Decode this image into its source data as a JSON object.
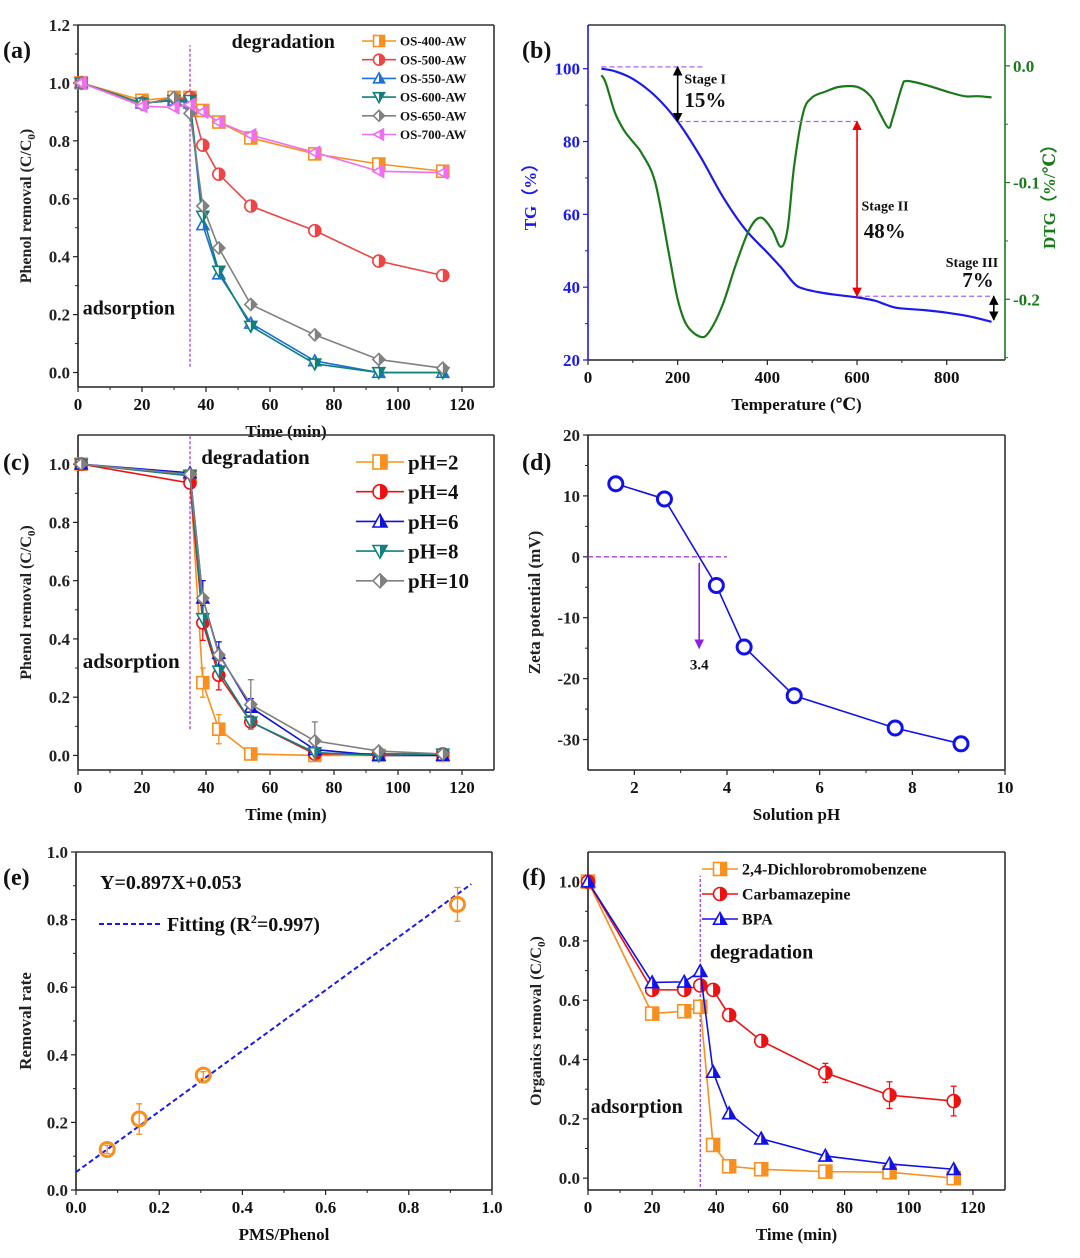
{
  "chart_data": [
    {
      "id": "a",
      "panel_label": "(a)",
      "type": "line",
      "xlabel": "Time (min)",
      "ylabel": "Phenol removal (C/C0)",
      "xlim": [
        0,
        130
      ],
      "ylim": [
        -0.05,
        1.2
      ],
      "xticks": [
        0,
        20,
        40,
        60,
        80,
        100,
        120
      ],
      "yticks": [
        0.0,
        0.2,
        0.4,
        0.6,
        0.8,
        1.0,
        1.2
      ],
      "ytick_labels": [
        "0.0",
        "0.2",
        "0.4",
        "0.6",
        "0.8",
        "1.0",
        "1.2"
      ],
      "annotations": [
        {
          "text": "degradation",
          "x": 48,
          "y": 1.12
        },
        {
          "text": "adsorption",
          "x": 1.5,
          "y": 0.2
        },
        {
          "type": "vline",
          "x": 35,
          "y_from": 0.02,
          "y_to": 1.13
        }
      ],
      "legend_position": "top-right",
      "x": [
        1,
        20,
        30,
        35,
        39,
        44,
        54,
        74,
        94,
        114
      ],
      "series": [
        {
          "name": "OS-400-AW",
          "color": "#f7901e",
          "marker": "square",
          "values": [
            1.0,
            0.94,
            0.95,
            0.95,
            0.905,
            0.865,
            0.81,
            0.755,
            0.72,
            0.695
          ]
        },
        {
          "name": "OS-500-AW",
          "color": "#ee4444",
          "marker": "circle",
          "values": [
            1.0,
            0.93,
            0.94,
            0.95,
            0.785,
            0.685,
            0.575,
            0.49,
            0.385,
            0.335
          ]
        },
        {
          "name": "OS-550-AW",
          "color": "#1e6fd9",
          "marker": "triangle-up",
          "values": [
            1.0,
            0.93,
            0.94,
            0.93,
            0.51,
            0.34,
            0.17,
            0.04,
            0.0,
            0.0
          ]
        },
        {
          "name": "OS-600-AW",
          "color": "#10807a",
          "marker": "triangle-down",
          "values": [
            1.0,
            0.93,
            0.94,
            0.94,
            0.54,
            0.35,
            0.16,
            0.03,
            0.0,
            0.0
          ]
        },
        {
          "name": "OS-650-AW",
          "color": "#808080",
          "marker": "diamond",
          "values": [
            1.0,
            0.925,
            0.95,
            0.895,
            0.575,
            0.43,
            0.235,
            0.13,
            0.045,
            0.015
          ]
        },
        {
          "name": "OS-700-AW",
          "color": "#f06ef0",
          "marker": "triangle-left",
          "values": [
            1.0,
            0.92,
            0.915,
            0.925,
            0.9,
            0.865,
            0.82,
            0.76,
            0.695,
            0.69
          ]
        }
      ]
    },
    {
      "id": "b",
      "panel_label": "(b)",
      "type": "line",
      "xlabel": "Temperature (℃)",
      "ylabel": "TG（%）",
      "y2label": "DTG（%/℃）",
      "xlim": [
        0,
        930
      ],
      "ylim": [
        20,
        112
      ],
      "y2lim": [
        -0.252,
        0.035
      ],
      "xticks": [
        0,
        200,
        400,
        600,
        800
      ],
      "yticks": [
        20,
        40,
        60,
        80,
        100
      ],
      "y2ticks": [
        0.0,
        -0.1,
        -0.2
      ],
      "y2tick_labels": [
        "0.0",
        "-0.1",
        "-0.2"
      ],
      "series": [
        {
          "name": "TG",
          "axis": "left",
          "color": "#1a1aee",
          "x": [
            30,
            60,
            100,
            150,
            200,
            250,
            300,
            350,
            400,
            430,
            460,
            480,
            520,
            560,
            600,
            640,
            660,
            690,
            750,
            800,
            850,
            900
          ],
          "values": [
            100,
            99.3,
            97.2,
            92.5,
            85.5,
            76,
            65,
            56,
            49.5,
            45.5,
            41,
            39.6,
            38.5,
            37.8,
            37.2,
            36.3,
            35.4,
            34.3,
            33.7,
            33,
            32,
            30.5
          ]
        },
        {
          "name": "DTG",
          "axis": "right",
          "color": "#1a7a1a",
          "x": [
            30,
            40,
            60,
            80,
            100,
            120,
            150,
            180,
            200,
            220,
            250,
            270,
            300,
            330,
            360,
            385,
            410,
            430,
            445,
            460,
            480,
            500,
            530,
            560,
            600,
            630,
            650,
            670,
            680,
            700,
            710,
            750,
            800,
            840,
            870,
            900
          ],
          "values": [
            -0.008,
            -0.015,
            -0.04,
            -0.055,
            -0.065,
            -0.075,
            -0.1,
            -0.16,
            -0.2,
            -0.222,
            -0.232,
            -0.228,
            -0.205,
            -0.17,
            -0.14,
            -0.13,
            -0.14,
            -0.155,
            -0.14,
            -0.085,
            -0.04,
            -0.027,
            -0.022,
            -0.018,
            -0.018,
            -0.026,
            -0.04,
            -0.053,
            -0.044,
            -0.018,
            -0.013,
            -0.016,
            -0.022,
            -0.026,
            -0.026,
            -0.027
          ]
        }
      ],
      "annotations": [
        {
          "text": "Stage I",
          "x": 215,
          "y": 96
        },
        {
          "text": "15%",
          "x": 215,
          "y": 89.5
        },
        {
          "text": "Stage II",
          "x": 610,
          "y": 61
        },
        {
          "text": "48%",
          "x": 615,
          "y": 53.5
        },
        {
          "text": "Stage III",
          "x": 915,
          "y": 45.5
        },
        {
          "text": "7%",
          "x": 905,
          "y": 40
        },
        {
          "type": "hline-dashed",
          "y": 100.5,
          "x_from": 30,
          "x_to": 255
        },
        {
          "type": "hline-dashed",
          "y": 85.5,
          "x_from": 200,
          "x_to": 600
        },
        {
          "type": "hline-dashed",
          "y": 37.5,
          "x_from": 600,
          "x_to": 905
        },
        {
          "type": "double-arrow",
          "color": "#000000",
          "x": 200,
          "y_from": 100.5,
          "y_to": 85.5
        },
        {
          "type": "double-arrow",
          "color": "#ee0000",
          "x": 600,
          "y_from": 85.5,
          "y_to": 37.5
        },
        {
          "type": "double-arrow",
          "color": "#000000",
          "x": 905,
          "y_from": 37.5,
          "y_to": 31
        }
      ]
    },
    {
      "id": "c",
      "panel_label": "(c)",
      "type": "line",
      "xlabel": "Time (min)",
      "ylabel": "Phenol removal (C/C0)",
      "xlim": [
        0,
        130
      ],
      "ylim": [
        -0.05,
        1.1
      ],
      "xticks": [
        0,
        20,
        40,
        60,
        80,
        100,
        120
      ],
      "yticks": [
        0.0,
        0.2,
        0.4,
        0.6,
        0.8,
        1.0
      ],
      "ytick_labels": [
        "0.0",
        "0.2",
        "0.4",
        "0.6",
        "0.8",
        "1.0"
      ],
      "annotations": [
        {
          "text": "degradation",
          "x": 38.5,
          "y": 1.0
        },
        {
          "text": "adsorption",
          "x": 1.5,
          "y": 0.3
        },
        {
          "type": "vline",
          "x": 35,
          "y_from": 0.09,
          "y_to": 1.1
        }
      ],
      "legend_position": "top-right",
      "x": [
        1,
        35,
        39,
        44,
        54,
        74,
        94,
        114
      ],
      "series": [
        {
          "name": "pH=2",
          "color": "#f7901e",
          "marker": "square",
          "values": [
            1.0,
            0.96,
            0.25,
            0.09,
            0.005,
            0.0,
            0.0,
            0.0
          ],
          "errors": [
            0,
            0,
            0.05,
            0.05,
            0,
            0,
            0,
            0
          ]
        },
        {
          "name": "pH=4",
          "color": "#ee1111",
          "marker": "circle",
          "values": [
            1.0,
            0.935,
            0.455,
            0.275,
            0.115,
            0.005,
            0.005,
            0.005
          ],
          "errors": [
            0,
            0,
            0.06,
            0.05,
            0,
            0,
            0,
            0
          ]
        },
        {
          "name": "pH=6",
          "color": "#1111dd",
          "marker": "triangle-up",
          "values": [
            1.0,
            0.97,
            0.54,
            0.35,
            0.165,
            0.02,
            0.0,
            0.0
          ],
          "errors": [
            0,
            0,
            0.06,
            0.04,
            0.03,
            0,
            0,
            0
          ]
        },
        {
          "name": "pH=8",
          "color": "#108080",
          "marker": "triangle-down",
          "values": [
            1.0,
            0.96,
            0.47,
            0.29,
            0.115,
            0.01,
            0.0,
            0.005
          ],
          "errors": [
            0,
            0,
            0,
            0,
            0,
            0,
            0,
            0
          ]
        },
        {
          "name": "pH=10",
          "color": "#808080",
          "marker": "diamond",
          "values": [
            1.0,
            0.965,
            0.54,
            0.345,
            0.175,
            0.05,
            0.015,
            0.005
          ],
          "errors": [
            0,
            0,
            0,
            0,
            0.085,
            0.065,
            0,
            0
          ]
        }
      ]
    },
    {
      "id": "d",
      "panel_label": "(d)",
      "type": "scatter",
      "xlabel": "Solution pH",
      "ylabel": "Zeta potential (mV)",
      "xlim": [
        1,
        10
      ],
      "ylim": [
        -35,
        20
      ],
      "xticks": [
        2,
        4,
        6,
        8,
        10
      ],
      "yticks": [
        -30,
        -20,
        -10,
        0,
        10,
        20
      ],
      "x": [
        1.6,
        2.65,
        3.77,
        4.37,
        5.45,
        7.63,
        9.05
      ],
      "series": [
        {
          "name": "Zeta potential",
          "color": "#1111ee",
          "marker": "open-circle",
          "values": [
            12.0,
            9.5,
            -4.7,
            -14.8,
            -22.8,
            -28.1,
            -30.7
          ]
        }
      ],
      "annotations": [
        {
          "type": "hline-dashed",
          "y": 0,
          "x_from": 1,
          "x_to": 4
        },
        {
          "type": "arrow-down",
          "x": 3.4,
          "y_from": -1,
          "y_to": -15
        },
        {
          "text": "3.4",
          "x": 3.4,
          "y": -18.5
        }
      ]
    },
    {
      "id": "e",
      "panel_label": "(e)",
      "type": "scatter",
      "xlabel": "PMS/Phenol",
      "ylabel": "Removal rate",
      "xlim": [
        0,
        1
      ],
      "ylim": [
        0,
        1
      ],
      "xticks": [
        0.0,
        0.2,
        0.4,
        0.6,
        0.8,
        1.0
      ],
      "yticks": [
        0.0,
        0.2,
        0.4,
        0.6,
        0.8,
        1.0
      ],
      "tick_labels": [
        "0.0",
        "0.2",
        "0.4",
        "0.6",
        "0.8",
        "1.0"
      ],
      "x": [
        0.075,
        0.152,
        0.306,
        0.917
      ],
      "series": [
        {
          "name": "data",
          "color": "#f7901e",
          "marker": "open-circle",
          "values": [
            0.12,
            0.21,
            0.34,
            0.845
          ],
          "errors": [
            0.012,
            0.045,
            0.01,
            0.05
          ]
        }
      ],
      "fit": {
        "slope": 0.897,
        "intercept": 0.053,
        "x_range": [
          0,
          0.95
        ],
        "color": "#1a1aee"
      },
      "equation_text": "Y=0.897X+0.053",
      "fit_label_prefix": "Fitting (R",
      "fit_label_sup": "2",
      "fit_label_suffix": "=0.997)"
    },
    {
      "id": "f",
      "panel_label": "(f)",
      "type": "line",
      "xlabel": "Time (min)",
      "ylabel": "Organics removal (C/C0)",
      "xlim": [
        0,
        130
      ],
      "ylim": [
        -0.04,
        1.1
      ],
      "xticks": [
        0,
        20,
        40,
        60,
        80,
        100,
        120
      ],
      "yticks": [
        0.0,
        0.2,
        0.4,
        0.6,
        0.8,
        1.0
      ],
      "ytick_labels": [
        "0.0",
        "0.2",
        "0.4",
        "0.6",
        "0.8",
        "1.0"
      ],
      "annotations": [
        {
          "text": "degradation",
          "x": 38,
          "y": 0.74
        },
        {
          "text": "adsorption",
          "x": 0.8,
          "y": 0.22
        },
        {
          "type": "vline",
          "x": 35,
          "y_from": -0.03,
          "y_to": 1.02
        }
      ],
      "legend_position": "top-right",
      "series": [
        {
          "name": "2,4-Dichlorobromobenzene",
          "color": "#f7901e",
          "marker": "square",
          "x": [
            0,
            20,
            30,
            35,
            39,
            44,
            54,
            74,
            94,
            114
          ],
          "values": [
            1.0,
            0.555,
            0.563,
            0.578,
            0.112,
            0.04,
            0.03,
            0.022,
            0.02,
            0.0
          ],
          "errors": [
            0,
            0,
            0,
            0,
            0,
            0,
            0,
            0,
            0,
            0
          ]
        },
        {
          "name": "Carbamazepine",
          "color": "#ee1111",
          "marker": "circle",
          "x": [
            0,
            20,
            30,
            35,
            39,
            44,
            54,
            74,
            94,
            114
          ],
          "values": [
            1.0,
            0.635,
            0.635,
            0.65,
            0.635,
            0.55,
            0.463,
            0.355,
            0.28,
            0.26
          ],
          "errors": [
            0,
            0,
            0,
            0,
            0,
            0,
            0.02,
            0.032,
            0.045,
            0.05
          ]
        },
        {
          "name": "BPA",
          "color": "#1111ee",
          "marker": "triangle-up",
          "x": [
            0,
            20,
            30,
            35,
            39,
            44,
            54,
            74,
            94,
            114
          ],
          "values": [
            1.0,
            0.66,
            0.662,
            0.698,
            0.358,
            0.218,
            0.133,
            0.075,
            0.048,
            0.03
          ],
          "errors": [
            0,
            0,
            0,
            0,
            0,
            0,
            0,
            0,
            0,
            0
          ]
        }
      ]
    }
  ]
}
